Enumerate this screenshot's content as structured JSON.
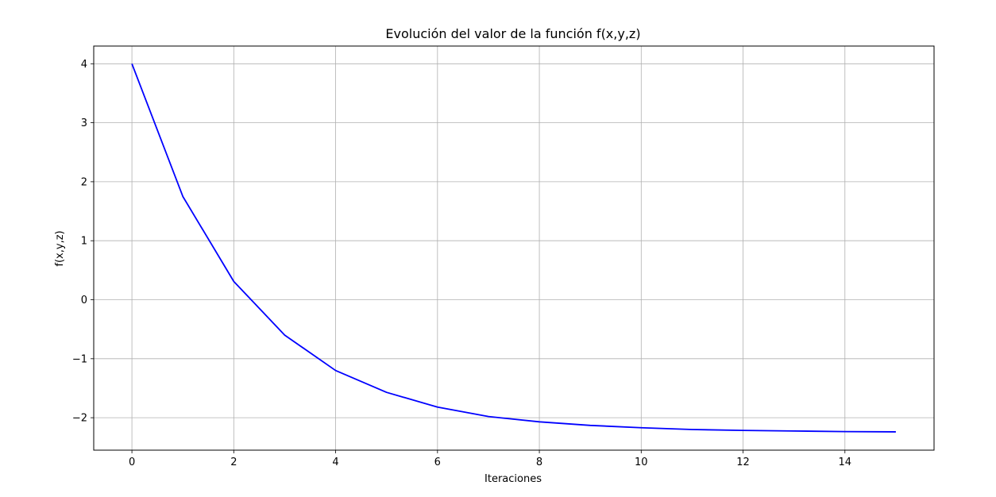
{
  "chart_data": {
    "type": "line",
    "title": "Evolución del valor de la función f(x,y,z)",
    "xlabel": "Iteraciones",
    "ylabel": "f(x,y,z)",
    "xlim": [
      -0.75,
      15.75
    ],
    "ylim": [
      -2.55,
      4.3
    ],
    "xticks": [
      0,
      2,
      4,
      6,
      8,
      10,
      12,
      14
    ],
    "xtick_labels": [
      "0",
      "2",
      "4",
      "6",
      "8",
      "10",
      "12",
      "14"
    ],
    "yticks": [
      4,
      3,
      2,
      1,
      0,
      -1,
      -2
    ],
    "ytick_labels": [
      "4",
      "3",
      "2",
      "1",
      "0",
      "−1",
      "−2"
    ],
    "grid": true,
    "series": [
      {
        "color": "#0000ff",
        "x": [
          0,
          1,
          2,
          3,
          4,
          5,
          6,
          7,
          8,
          9,
          10,
          11,
          12,
          13,
          14,
          15
        ],
        "y": [
          4.0,
          1.75,
          0.31,
          -0.6,
          -1.2,
          -1.57,
          -1.82,
          -1.98,
          -2.07,
          -2.13,
          -2.17,
          -2.2,
          -2.215,
          -2.225,
          -2.235,
          -2.24
        ]
      }
    ]
  }
}
